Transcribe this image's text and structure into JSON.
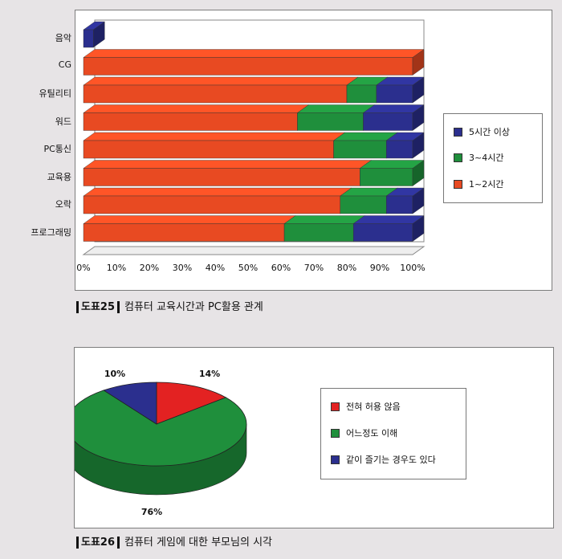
{
  "chart_data": [
    {
      "type": "bar",
      "orientation": "horizontal",
      "stacked": "percent",
      "categories": [
        "음악",
        "CG",
        "유틸리티",
        "워드",
        "PC통신",
        "교육용",
        "오락",
        "프로그래밍"
      ],
      "series": [
        {
          "name": "1~2시간",
          "color": "#e84a22",
          "values": [
            0,
            100,
            80,
            65,
            76,
            84,
            78,
            61
          ]
        },
        {
          "name": "3~4시간",
          "color": "#1f8f3c",
          "values": [
            0,
            0,
            9,
            20,
            16,
            16,
            14,
            21
          ]
        },
        {
          "name": "5시간 이상",
          "color": "#2b2f8e",
          "values": [
            3,
            0,
            11,
            15,
            8,
            0,
            8,
            18
          ]
        }
      ],
      "x_ticks": [
        "0%",
        "10%",
        "20%",
        "30%",
        "40%",
        "50%",
        "60%",
        "70%",
        "80%",
        "90%",
        "100%"
      ],
      "xlim": [
        0,
        100
      ],
      "legend": "right"
    },
    {
      "type": "pie",
      "style": "3d",
      "slices": [
        {
          "name": "전혀 허용 않음",
          "value": 14,
          "label": "14%",
          "color": "#e32222"
        },
        {
          "name": "어느정도 이해",
          "value": 76,
          "label": "76%",
          "color": "#1f8f3c"
        },
        {
          "name": "같이 즐기는 경우도 있다",
          "value": 10,
          "label": "10%",
          "color": "#2b2f8e"
        }
      ],
      "legend": "right"
    }
  ],
  "captions": {
    "fig25_tag": "도표25",
    "fig25_text": "컴퓨터 교육시간과 PC활용 관계",
    "fig26_tag": "도표26",
    "fig26_text": "컴퓨터 게임에 대한 부모님의 시각"
  }
}
